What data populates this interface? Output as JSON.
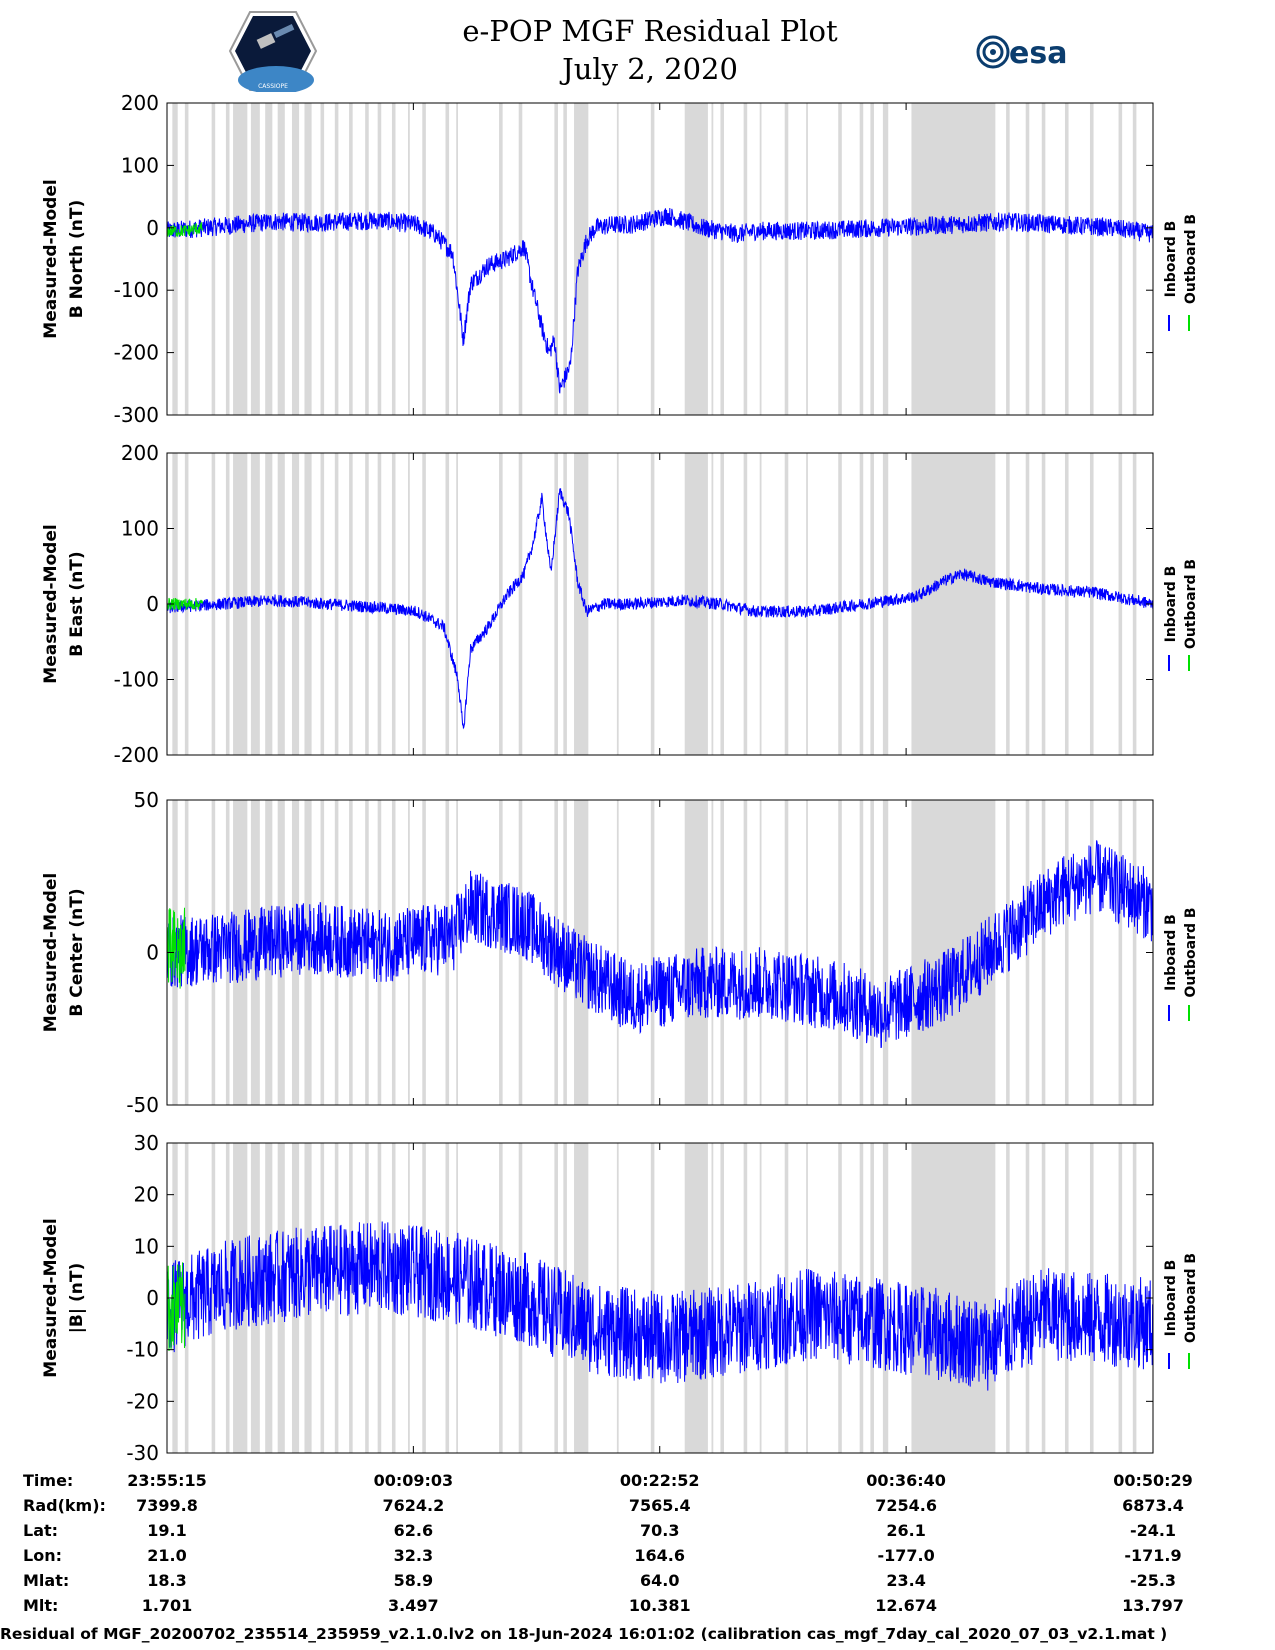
{
  "header": {
    "title_line1": "e-POP MGF Residual Plot",
    "title_line2": "July 2, 2020",
    "mission_logo_text": "CASSIOPE",
    "esa_logo_text": "esa"
  },
  "colors": {
    "inboard": "#0000ff",
    "outboard": "#00e000",
    "gap_shading": "#d9d9d9"
  },
  "chart_data": [
    {
      "type": "line",
      "ylabel": [
        "Measured-Model",
        "B North (nT)"
      ],
      "ylim": [
        -300,
        200
      ],
      "yticks": [
        200,
        100,
        0,
        -100,
        -200,
        -300
      ],
      "legend": [
        "Inboard B",
        "Outboard B"
      ],
      "x_range_minutes": [
        0,
        55.23
      ],
      "series": [
        {
          "name": "Inboard B",
          "x": [
            0,
            2,
            4,
            6,
            8,
            10,
            12,
            14,
            15,
            16,
            16.6,
            17,
            18,
            19,
            20,
            20.5,
            21,
            21.4,
            21.7,
            22,
            22.3,
            22.6,
            23,
            23.5,
            24,
            25,
            26,
            28,
            30,
            31,
            32,
            33,
            36,
            40,
            44,
            47,
            50,
            53,
            55.23
          ],
          "values": [
            -5,
            0,
            5,
            10,
            8,
            10,
            12,
            5,
            -10,
            -40,
            -180,
            -90,
            -60,
            -50,
            -30,
            -100,
            -160,
            -200,
            -180,
            -260,
            -240,
            -220,
            -70,
            -20,
            0,
            5,
            5,
            20,
            0,
            -5,
            -10,
            -5,
            -5,
            0,
            5,
            10,
            5,
            0,
            -10
          ],
          "noise": 15
        },
        {
          "name": "Outboard B",
          "x": [
            0,
            1,
            2
          ],
          "values": [
            -5,
            -5,
            0
          ],
          "noise": 10
        }
      ]
    },
    {
      "type": "line",
      "ylabel": [
        "Measured-Model",
        "B East (nT)"
      ],
      "ylim": [
        -200,
        200
      ],
      "yticks": [
        200,
        100,
        0,
        -100,
        -200
      ],
      "legend": [
        "Inboard B",
        "Outboard B"
      ],
      "x_range_minutes": [
        0,
        55.23
      ],
      "series": [
        {
          "name": "Inboard B",
          "x": [
            0,
            3,
            6,
            9,
            12,
            14,
            15.5,
            16.3,
            16.6,
            17,
            18,
            19,
            20,
            20.5,
            21,
            21.5,
            22,
            22.5,
            23,
            23.5,
            24.5,
            26,
            29,
            31,
            33,
            36,
            39,
            42,
            43.5,
            44.5,
            46,
            49,
            52,
            55.23
          ],
          "values": [
            -5,
            0,
            5,
            0,
            -5,
            -10,
            -30,
            -100,
            -170,
            -60,
            -30,
            10,
            40,
            80,
            140,
            40,
            150,
            120,
            30,
            -10,
            0,
            0,
            5,
            0,
            -10,
            -10,
            0,
            10,
            30,
            40,
            30,
            20,
            15,
            0
          ],
          "noise": 8
        },
        {
          "name": "Outboard B",
          "x": [
            0,
            1,
            2
          ],
          "values": [
            0,
            0,
            0
          ],
          "noise": 8
        }
      ]
    },
    {
      "type": "line",
      "ylabel": [
        "Measured-Model",
        "B Center (nT)"
      ],
      "ylim": [
        -50,
        50
      ],
      "yticks": [
        50,
        0,
        -50
      ],
      "legend": [
        "Inboard B",
        "Outboard B"
      ],
      "x_range_minutes": [
        0,
        55.23
      ],
      "series": [
        {
          "name": "Inboard B",
          "x": [
            0,
            4,
            8,
            12,
            16,
            17,
            20,
            23,
            26,
            30,
            34,
            38,
            40,
            42,
            44,
            46,
            48,
            50,
            52,
            55.23
          ],
          "values": [
            0,
            2,
            5,
            2,
            5,
            15,
            10,
            -5,
            -15,
            -10,
            -10,
            -15,
            -20,
            -15,
            -10,
            0,
            10,
            20,
            25,
            15
          ],
          "noise": 12
        },
        {
          "name": "Outboard B",
          "x": [
            0,
            1
          ],
          "values": [
            0,
            0
          ],
          "noise": 15
        }
      ]
    },
    {
      "type": "line",
      "ylabel": [
        "Measured-Model",
        "|B| (nT)"
      ],
      "ylim": [
        -30,
        30
      ],
      "yticks": [
        30,
        20,
        10,
        0,
        -10,
        -20,
        -30
      ],
      "legend": [
        "Inboard B",
        "Outboard B"
      ],
      "x_range_minutes": [
        0,
        55.23
      ],
      "series": [
        {
          "name": "Inboard B",
          "x": [
            0,
            4,
            8,
            12,
            16,
            20,
            24,
            28,
            32,
            36,
            40,
            43,
            46,
            49,
            52,
            55.23
          ],
          "values": [
            -2,
            3,
            5,
            6,
            4,
            0,
            -6,
            -8,
            -6,
            -3,
            -5,
            -7,
            -9,
            -3,
            -4,
            -5
          ],
          "noise": 9
        },
        {
          "name": "Outboard B",
          "x": [
            0,
            1
          ],
          "values": [
            -2,
            -2
          ],
          "noise": 9
        }
      ]
    }
  ],
  "x_tick_positions_minutes": [
    0,
    13.8,
    27.6,
    41.4,
    55.23
  ],
  "gap_intervals_minutes": [
    [
      0.3,
      0.6
    ],
    [
      1.0,
      1.2
    ],
    [
      2.5,
      2.7
    ],
    [
      3.3,
      3.5
    ],
    [
      3.7,
      4.5
    ],
    [
      4.7,
      5.2
    ],
    [
      5.5,
      5.9
    ],
    [
      6.2,
      6.6
    ],
    [
      7.0,
      7.4
    ],
    [
      7.7,
      8.1
    ],
    [
      8.6,
      8.8
    ],
    [
      9.4,
      9.6
    ],
    [
      10.2,
      10.4
    ],
    [
      11.1,
      11.3
    ],
    [
      11.8,
      12.0
    ],
    [
      12.6,
      12.8
    ],
    [
      13.5,
      13.6
    ],
    [
      14.3,
      14.5
    ],
    [
      15.6,
      15.8
    ],
    [
      16.2,
      16.3
    ],
    [
      18.6,
      18.8
    ],
    [
      19.7,
      19.9
    ],
    [
      21.7,
      21.9
    ],
    [
      22.2,
      22.4
    ],
    [
      22.8,
      23.6
    ],
    [
      25.2,
      25.3
    ],
    [
      27.1,
      27.3
    ],
    [
      29.0,
      30.3
    ],
    [
      30.5,
      30.6
    ],
    [
      31.0,
      31.2
    ],
    [
      32.3,
      32.5
    ],
    [
      33.2,
      33.3
    ],
    [
      34.6,
      34.8
    ],
    [
      35.8,
      35.9
    ],
    [
      37.6,
      37.8
    ],
    [
      38.8,
      39.0
    ],
    [
      39.4,
      39.6
    ],
    [
      40.1,
      40.4
    ],
    [
      41.7,
      46.4
    ],
    [
      47.0,
      47.2
    ],
    [
      48.1,
      48.3
    ],
    [
      49.0,
      49.2
    ],
    [
      50.3,
      50.5
    ],
    [
      51.7,
      51.9
    ],
    [
      53.3,
      53.5
    ],
    [
      54.1,
      54.3
    ]
  ],
  "ephemeris": {
    "row_labels": [
      "Time:",
      "Rad(km):",
      "Lat:",
      "Lon:",
      "Mlat:",
      "Mlt:"
    ],
    "columns": [
      [
        "23:55:15",
        "7399.8",
        "19.1",
        "21.0",
        "18.3",
        "1.701"
      ],
      [
        "00:09:03",
        "7624.2",
        "62.6",
        "32.3",
        "58.9",
        "3.497"
      ],
      [
        "00:22:52",
        "7565.4",
        "70.3",
        "164.6",
        "64.0",
        "10.381"
      ],
      [
        "00:36:40",
        "7254.6",
        "26.1",
        "-177.0",
        "23.4",
        "12.674"
      ],
      [
        "00:50:29",
        "6873.4",
        "-24.1",
        "-171.9",
        "-25.3",
        "13.797"
      ]
    ]
  },
  "footer": "Residual of MGF_20200702_235514_235959_v2.1.0.lv2 on 18-Jun-2024 16:01:02 (calibration cas_mgf_7day_cal_2020_07_03_v2.1.mat )"
}
